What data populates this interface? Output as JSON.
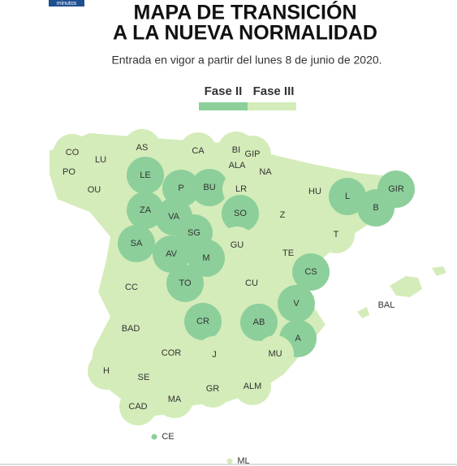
{
  "header": {
    "badge": "minutos",
    "title": [
      "MAPA DE TRANSICIÓN",
      "A LA NUEVA NORMALIDAD"
    ],
    "subtitle": "Entrada en vigor a partir del lunes 8 de junio de 2020."
  },
  "legend": [
    {
      "label": "Fase II",
      "color": "#8ccf9b"
    },
    {
      "label": "Fase III",
      "color": "#d4ecb9"
    }
  ],
  "regions": [
    {
      "label": "CO",
      "color": "#d4ecb9"
    },
    {
      "label": "LU",
      "color": "#d4ecb9"
    },
    {
      "label": "AS",
      "color": "#d4ecb9"
    },
    {
      "label": "CA",
      "color": "#d4ecb9"
    },
    {
      "label": "BI",
      "color": "#d4ecb9"
    },
    {
      "label": "GIP",
      "color": "#d4ecb9"
    },
    {
      "label": "PO",
      "color": "#d4ecb9"
    },
    {
      "label": "OU",
      "color": "#d4ecb9"
    },
    {
      "label": "LE",
      "color": "#8ccf9b"
    },
    {
      "label": "ALA",
      "color": "#d4ecb9"
    },
    {
      "label": "NA",
      "color": "#d4ecb9"
    },
    {
      "label": "P",
      "color": "#8ccf9b"
    },
    {
      "label": "BU",
      "color": "#8ccf9b"
    },
    {
      "label": "LR",
      "color": "#d4ecb9"
    },
    {
      "label": "HU",
      "color": "#d4ecb9"
    },
    {
      "label": "L",
      "color": "#8ccf9b"
    },
    {
      "label": "GIR",
      "color": "#8ccf9b"
    },
    {
      "label": "B",
      "color": "#8ccf9b"
    },
    {
      "label": "ZA",
      "color": "#8ccf9b"
    },
    {
      "label": "VA",
      "color": "#8ccf9b"
    },
    {
      "label": "SO",
      "color": "#8ccf9b"
    },
    {
      "label": "Z",
      "color": "#d4ecb9"
    },
    {
      "label": "SG",
      "color": "#8ccf9b"
    },
    {
      "label": "T",
      "color": "#d4ecb9"
    },
    {
      "label": "SA",
      "color": "#8ccf9b"
    },
    {
      "label": "AV",
      "color": "#8ccf9b"
    },
    {
      "label": "GU",
      "color": "#d4ecb9"
    },
    {
      "label": "M",
      "color": "#8ccf9b"
    },
    {
      "label": "TE",
      "color": "#d4ecb9"
    },
    {
      "label": "CS",
      "color": "#8ccf9b"
    },
    {
      "label": "CC",
      "color": "#d4ecb9"
    },
    {
      "label": "TO",
      "color": "#8ccf9b"
    },
    {
      "label": "CU",
      "color": "#d4ecb9"
    },
    {
      "label": "BAL",
      "color": "#d4ecb9"
    },
    {
      "label": "V",
      "color": "#8ccf9b"
    },
    {
      "label": "CR",
      "color": "#8ccf9b"
    },
    {
      "label": "AB",
      "color": "#8ccf9b"
    },
    {
      "label": "BAD",
      "color": "#d4ecb9"
    },
    {
      "label": "A",
      "color": "#8ccf9b"
    },
    {
      "label": "COR",
      "color": "#d4ecb9"
    },
    {
      "label": "J",
      "color": "#d4ecb9"
    },
    {
      "label": "MU",
      "color": "#d4ecb9"
    },
    {
      "label": "H",
      "color": "#d4ecb9"
    },
    {
      "label": "SE",
      "color": "#d4ecb9"
    },
    {
      "label": "GR",
      "color": "#d4ecb9"
    },
    {
      "label": "ALM",
      "color": "#d4ecb9"
    },
    {
      "label": "MA",
      "color": "#d4ecb9"
    },
    {
      "label": "CAD",
      "color": "#d4ecb9"
    },
    {
      "label": "CE",
      "color": "#8ccf9b"
    },
    {
      "label": "ML",
      "color": "#d4ecb9"
    }
  ]
}
